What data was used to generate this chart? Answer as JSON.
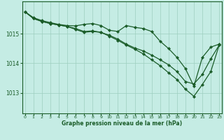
{
  "title": "Graphe pression niveau de la mer (hPa)",
  "background_color": "#c5ece4",
  "grid_color": "#9ecfbf",
  "line_color": "#1a5c28",
  "marker_color": "#1a5c28",
  "xlim": [
    -0.3,
    23.3
  ],
  "ylim": [
    1012.3,
    1016.1
  ],
  "yticks": [
    1013,
    1014,
    1015
  ],
  "xticks": [
    0,
    1,
    2,
    3,
    4,
    5,
    6,
    7,
    8,
    9,
    10,
    11,
    12,
    13,
    14,
    15,
    16,
    17,
    18,
    19,
    20,
    21,
    22,
    23
  ],
  "series": [
    [
      1015.75,
      1015.55,
      1015.45,
      1015.38,
      1015.32,
      1015.28,
      1015.27,
      1015.32,
      1015.35,
      1015.28,
      1015.12,
      1015.08,
      1015.28,
      1015.22,
      1015.18,
      1015.08,
      1014.75,
      1014.5,
      1014.2,
      1013.82,
      1013.22,
      1014.2,
      1014.55,
      1014.65
    ],
    [
      1015.75,
      1015.52,
      1015.42,
      1015.35,
      1015.3,
      1015.25,
      1015.18,
      1015.08,
      1015.1,
      1015.05,
      1014.92,
      1014.78,
      1014.62,
      1014.48,
      1014.32,
      1014.12,
      1013.92,
      1013.68,
      1013.45,
      1013.12,
      1012.88,
      1013.28,
      1013.72,
      1014.62
    ],
    [
      1015.75,
      1015.52,
      1015.42,
      1015.35,
      1015.3,
      1015.25,
      1015.15,
      1015.05,
      1015.08,
      1015.05,
      1014.95,
      1014.82,
      1014.65,
      1014.52,
      1014.42,
      1014.28,
      1014.12,
      1013.95,
      1013.72,
      1013.38,
      1013.3,
      1013.62,
      1014.15,
      1014.62
    ]
  ]
}
